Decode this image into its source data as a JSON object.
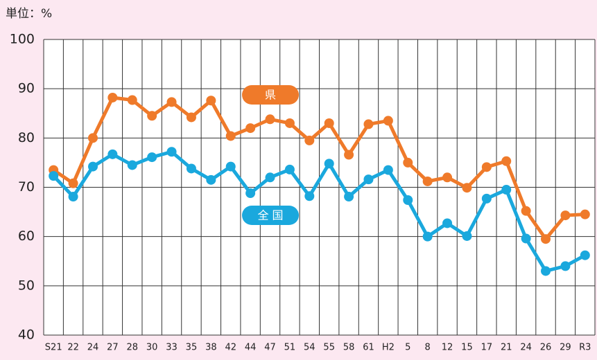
{
  "chart_data": {
    "type": "line",
    "subtitle": "単位：%",
    "categories": [
      "S21",
      "22",
      "24",
      "27",
      "28",
      "30",
      "33",
      "35",
      "38",
      "42",
      "44",
      "47",
      "51",
      "54",
      "55",
      "58",
      "61",
      "H2",
      "5",
      "8",
      "12",
      "15",
      "17",
      "21",
      "24",
      "26",
      "29",
      "R3"
    ],
    "series": [
      {
        "name": "県",
        "color": "#ef7a2a",
        "values": [
          73.5,
          70.8,
          80,
          88.2,
          87.7,
          84.5,
          87.3,
          84.2,
          87.6,
          80.4,
          82,
          83.8,
          83,
          79.5,
          83,
          76.6,
          82.8,
          83.5,
          75,
          71.2,
          72,
          69.9,
          74.1,
          75.3,
          65.2,
          59.5,
          64.3,
          64.5
        ]
      },
      {
        "name": "全 国",
        "color": "#1aa8dd",
        "values": [
          72.3,
          68.1,
          74.2,
          76.7,
          74.5,
          76.1,
          77.2,
          73.8,
          71.5,
          74.2,
          68.8,
          72,
          73.6,
          68.2,
          74.8,
          68.1,
          71.6,
          73.5,
          67.4,
          60,
          62.7,
          60.1,
          67.7,
          69.5,
          59.6,
          53,
          54,
          56.2
        ]
      }
    ],
    "ylim": [
      40,
      100
    ],
    "yticks": [
      40,
      50,
      60,
      70,
      80,
      90,
      100
    ],
    "grid": true
  }
}
